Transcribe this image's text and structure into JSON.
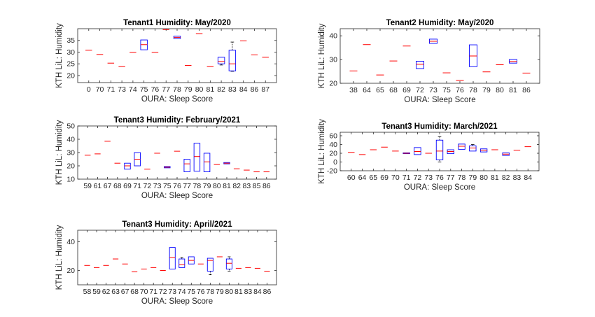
{
  "chart_data": [
    {
      "type": "boxplot",
      "title": "Tenant1 Humidity: May/2020",
      "xlabel": "OURA: Sleep Score",
      "ylabel": "KTH LiL: Humidity",
      "ylim": [
        17,
        40
      ],
      "yticks": [
        20,
        25,
        30,
        35
      ],
      "categories": [
        "0",
        "70",
        "71",
        "73",
        "74",
        "75",
        "76",
        "77",
        "78",
        "79",
        "80",
        "81",
        "82",
        "83",
        "84",
        "86",
        "87"
      ],
      "boxes": [
        {
          "q1": 30.8,
          "median": 30.8,
          "q3": 30.8,
          "whisker_low": 30.8,
          "whisker_high": 30.8
        },
        {
          "q1": 29,
          "median": 29,
          "q3": 29,
          "whisker_low": 29,
          "whisker_high": 29
        },
        {
          "q1": 25.3,
          "median": 25.3,
          "q3": 25.3,
          "whisker_low": 25.3,
          "whisker_high": 25.3
        },
        {
          "q1": 23.8,
          "median": 23.8,
          "q3": 23.8,
          "whisker_low": 23.8,
          "whisker_high": 23.8
        },
        {
          "q1": 29.9,
          "median": 29.9,
          "q3": 29.9,
          "whisker_low": 29.9,
          "whisker_high": 29.9
        },
        {
          "q1": 31,
          "median": 33.2,
          "q3": 35.2,
          "whisker_low": 31,
          "whisker_high": 35.2
        },
        {
          "q1": 29.9,
          "median": 29.9,
          "q3": 29.9,
          "whisker_low": 29.9,
          "whisker_high": 29.9
        },
        {
          "q1": 39.6,
          "median": 39.6,
          "q3": 39.6,
          "whisker_low": 39.6,
          "whisker_high": 39.6
        },
        {
          "q1": 35.8,
          "median": 36.3,
          "q3": 36.8,
          "whisker_low": 35.8,
          "whisker_high": 36.8
        },
        {
          "q1": 24.3,
          "median": 24.3,
          "q3": 24.3,
          "whisker_low": 24.3,
          "whisker_high": 24.3
        },
        {
          "q1": 37.9,
          "median": 37.9,
          "q3": 37.9,
          "whisker_low": 37.9,
          "whisker_high": 37.9
        },
        {
          "q1": 23.8,
          "median": 23.8,
          "q3": 23.8,
          "whisker_low": 23.8,
          "whisker_high": 23.8
        },
        {
          "q1": 25,
          "median": 26,
          "q3": 27.8,
          "whisker_low": 24.5,
          "whisker_high": 27.8
        },
        {
          "q1": 22,
          "median": 25,
          "q3": 30.8,
          "whisker_low": 21.8,
          "whisker_high": 34.3
        },
        {
          "q1": 34.8,
          "median": 34.8,
          "q3": 34.8,
          "whisker_low": 34.8,
          "whisker_high": 34.8
        },
        {
          "q1": 28.8,
          "median": 28.8,
          "q3": 28.8,
          "whisker_low": 28.8,
          "whisker_high": 28.8
        },
        {
          "q1": 27.8,
          "median": 27.8,
          "q3": 27.8,
          "whisker_low": 27.8,
          "whisker_high": 27.8
        }
      ]
    },
    {
      "type": "boxplot",
      "title": "Tenant2 Humidity: May/2020",
      "xlabel": "OURA: Sleep Score",
      "ylabel": "KTH LiL: Humidity",
      "ylim": [
        20,
        43
      ],
      "yticks": [
        20,
        30,
        40
      ],
      "categories": [
        "38",
        "64",
        "65",
        "68",
        "69",
        "72",
        "73",
        "75",
        "76",
        "78",
        "79",
        "80",
        "81",
        "86"
      ],
      "boxes": [
        {
          "q1": 25.2,
          "median": 25.2,
          "q3": 25.2,
          "whisker_low": 25.2,
          "whisker_high": 25.2
        },
        {
          "q1": 36.3,
          "median": 36.3,
          "q3": 36.3,
          "whisker_low": 36.3,
          "whisker_high": 36.3
        },
        {
          "q1": 23.5,
          "median": 23.5,
          "q3": 23.5,
          "whisker_low": 23.5,
          "whisker_high": 23.5
        },
        {
          "q1": 29.4,
          "median": 29.4,
          "q3": 29.4,
          "whisker_low": 29.4,
          "whisker_high": 29.4
        },
        {
          "q1": 35.7,
          "median": 35.7,
          "q3": 35.7,
          "whisker_low": 35.7,
          "whisker_high": 35.7
        },
        {
          "q1": 26.2,
          "median": 28,
          "q3": 29.3,
          "whisker_low": 26.2,
          "whisker_high": 29.3
        },
        {
          "q1": 36.8,
          "median": 37.7,
          "q3": 38.6,
          "whisker_low": 36.8,
          "whisker_high": 38.6
        },
        {
          "q1": 24.4,
          "median": 24.4,
          "q3": 24.4,
          "whisker_low": 24.4,
          "whisker_high": 24.4
        },
        {
          "q1": 21.2,
          "median": 21.2,
          "q3": 21.2,
          "whisker_low": 21.2,
          "whisker_high": 21.2
        },
        {
          "q1": 27,
          "median": 31.5,
          "q3": 36.2,
          "whisker_low": 27,
          "whisker_high": 36.2
        },
        {
          "q1": 24.8,
          "median": 24.8,
          "q3": 24.8,
          "whisker_low": 24.8,
          "whisker_high": 24.8
        },
        {
          "q1": 27.8,
          "median": 27.8,
          "q3": 27.8,
          "whisker_low": 27.8,
          "whisker_high": 27.8
        },
        {
          "q1": 28.5,
          "median": 29.2,
          "q3": 30,
          "whisker_low": 28.5,
          "whisker_high": 30
        },
        {
          "q1": 24.3,
          "median": 24.3,
          "q3": 24.3,
          "whisker_low": 24.3,
          "whisker_high": 24.3
        }
      ]
    },
    {
      "type": "boxplot",
      "title": "Tenant3 Humidity: February/2021",
      "xlabel": "OURA: Sleep Score",
      "ylabel": "KTH LiL: Humidity",
      "ylim": [
        10,
        50
      ],
      "yticks": [
        10,
        20,
        30,
        40,
        50
      ],
      "categories": [
        "59",
        "61",
        "67",
        "68",
        "69",
        "71",
        "72",
        "73",
        "75",
        "76",
        "77",
        "78",
        "79",
        "80",
        "81",
        "82",
        "83",
        "85",
        "86"
      ],
      "boxes": [
        {
          "q1": 28,
          "median": 28,
          "q3": 28,
          "whisker_low": 28,
          "whisker_high": 28
        },
        {
          "q1": 29,
          "median": 29,
          "q3": 29,
          "whisker_low": 29,
          "whisker_high": 29
        },
        {
          "q1": 38.5,
          "median": 38.5,
          "q3": 38.5,
          "whisker_low": 38.5,
          "whisker_high": 38.5
        },
        {
          "q1": 22,
          "median": 22,
          "q3": 22,
          "whisker_low": 22,
          "whisker_high": 22
        },
        {
          "q1": 17.5,
          "median": 20,
          "q3": 22,
          "whisker_low": 17.5,
          "whisker_high": 22
        },
        {
          "q1": 20,
          "median": 25,
          "q3": 30,
          "whisker_low": 20,
          "whisker_high": 30
        },
        {
          "q1": 17.5,
          "median": 17.5,
          "q3": 17.5,
          "whisker_low": 17.5,
          "whisker_high": 17.5
        },
        {
          "q1": 29.5,
          "median": 29.5,
          "q3": 29.5,
          "whisker_low": 29.5,
          "whisker_high": 29.5
        },
        {
          "q1": 18.5,
          "median": 19,
          "q3": 19.5,
          "whisker_low": 18.5,
          "whisker_high": 19.5
        },
        {
          "q1": 31,
          "median": 31,
          "q3": 31,
          "whisker_low": 31,
          "whisker_high": 31
        },
        {
          "q1": 15.5,
          "median": 21.5,
          "q3": 25,
          "whisker_low": 15.5,
          "whisker_high": 25
        },
        {
          "q1": 16,
          "median": 27,
          "q3": 37,
          "whisker_low": 16,
          "whisker_high": 37
        },
        {
          "q1": 15.5,
          "median": 23,
          "q3": 29.5,
          "whisker_low": 15.5,
          "whisker_high": 29.5
        },
        {
          "q1": 21,
          "median": 21,
          "q3": 21,
          "whisker_low": 21,
          "whisker_high": 21
        },
        {
          "q1": 21.5,
          "median": 22,
          "q3": 22.5,
          "whisker_low": 21.5,
          "whisker_high": 22.5
        },
        {
          "q1": 17.8,
          "median": 17.8,
          "q3": 17.8,
          "whisker_low": 17.8,
          "whisker_high": 17.8
        },
        {
          "q1": 16.8,
          "median": 16.8,
          "q3": 16.8,
          "whisker_low": 16.8,
          "whisker_high": 16.8
        },
        {
          "q1": 15.5,
          "median": 15.5,
          "q3": 15.5,
          "whisker_low": 15.5,
          "whisker_high": 15.5
        },
        {
          "q1": 15.5,
          "median": 15.5,
          "q3": 15.5,
          "whisker_low": 15.5,
          "whisker_high": 15.5
        }
      ]
    },
    {
      "type": "boxplot",
      "title": "Tenant3 Humidity: March/2021",
      "xlabel": "OURA: Sleep Score",
      "ylabel": "KTH LiL: Humidity",
      "ylim": [
        -20,
        68
      ],
      "yticks": [
        -20,
        0,
        20,
        40,
        60
      ],
      "categories": [
        "60",
        "64",
        "65",
        "69",
        "70",
        "71",
        "72",
        "73",
        "76",
        "77",
        "78",
        "79",
        "80",
        "81",
        "82",
        "83",
        "84"
      ],
      "boxes": [
        {
          "q1": 22,
          "median": 22,
          "q3": 22,
          "whisker_low": 22,
          "whisker_high": 22
        },
        {
          "q1": 17,
          "median": 17,
          "q3": 17,
          "whisker_low": 17,
          "whisker_high": 17
        },
        {
          "q1": 28,
          "median": 28,
          "q3": 28,
          "whisker_low": 28,
          "whisker_high": 28
        },
        {
          "q1": 34,
          "median": 34,
          "q3": 34,
          "whisker_low": 34,
          "whisker_high": 34
        },
        {
          "q1": 25,
          "median": 25,
          "q3": 25,
          "whisker_low": 25,
          "whisker_high": 25
        },
        {
          "q1": 19,
          "median": 20,
          "q3": 21,
          "whisker_low": 19,
          "whisker_high": 21
        },
        {
          "q1": 17,
          "median": 24,
          "q3": 33,
          "whisker_low": 17,
          "whisker_high": 33
        },
        {
          "q1": 20,
          "median": 20,
          "q3": 20,
          "whisker_low": 20,
          "whisker_high": 20
        },
        {
          "q1": 5,
          "median": 25,
          "q3": 50,
          "whisker_low": 0,
          "whisker_high": 58
        },
        {
          "q1": 19,
          "median": 24,
          "q3": 28,
          "whisker_low": 19,
          "whisker_high": 28
        },
        {
          "q1": 29,
          "median": 36,
          "q3": 41,
          "whisker_low": 29,
          "whisker_high": 41
        },
        {
          "q1": 25,
          "median": 32,
          "q3": 37,
          "whisker_low": 25,
          "whisker_high": 40
        },
        {
          "q1": 23,
          "median": 27,
          "q3": 30,
          "whisker_low": 23,
          "whisker_high": 30
        },
        {
          "q1": 28,
          "median": 28,
          "q3": 28,
          "whisker_low": 28,
          "whisker_high": 28
        },
        {
          "q1": 15,
          "median": 18,
          "q3": 21,
          "whisker_low": 15,
          "whisker_high": 21
        },
        {
          "q1": 27,
          "median": 27,
          "q3": 27,
          "whisker_low": 27,
          "whisker_high": 27
        },
        {
          "q1": 35,
          "median": 35,
          "q3": 35,
          "whisker_low": 35,
          "whisker_high": 35
        }
      ]
    },
    {
      "type": "boxplot",
      "title": "Tenant3 Humidity: April/2021",
      "xlabel": "OURA: Sleep Score",
      "ylabel": "KTH LiL: Humidity",
      "ylim": [
        10,
        48
      ],
      "yticks": [
        20,
        40
      ],
      "categories": [
        "58",
        "59",
        "62",
        "63",
        "67",
        "68",
        "70",
        "71",
        "72",
        "73",
        "74",
        "75",
        "76",
        "78",
        "79",
        "80",
        "81",
        "83",
        "84",
        "86"
      ],
      "boxes": [
        {
          "q1": 23.5,
          "median": 23.5,
          "q3": 23.5,
          "whisker_low": 23.5,
          "whisker_high": 23.5
        },
        {
          "q1": 22,
          "median": 22,
          "q3": 22,
          "whisker_low": 22,
          "whisker_high": 22
        },
        {
          "q1": 23.5,
          "median": 23.5,
          "q3": 23.5,
          "whisker_low": 23.5,
          "whisker_high": 23.5
        },
        {
          "q1": 28,
          "median": 28,
          "q3": 28,
          "whisker_low": 28,
          "whisker_high": 28
        },
        {
          "q1": 24.5,
          "median": 24.5,
          "q3": 24.5,
          "whisker_low": 24.5,
          "whisker_high": 24.5
        },
        {
          "q1": 19,
          "median": 19,
          "q3": 19,
          "whisker_low": 19,
          "whisker_high": 19
        },
        {
          "q1": 21,
          "median": 21,
          "q3": 21,
          "whisker_low": 21,
          "whisker_high": 21
        },
        {
          "q1": 22,
          "median": 22,
          "q3": 22,
          "whisker_low": 22,
          "whisker_high": 22
        },
        {
          "q1": 20,
          "median": 20,
          "q3": 20,
          "whisker_low": 20,
          "whisker_high": 20
        },
        {
          "q1": 21,
          "median": 29,
          "q3": 36,
          "whisker_low": 21,
          "whisker_high": 36
        },
        {
          "q1": 22,
          "median": 24,
          "q3": 28,
          "whisker_low": 22,
          "whisker_high": 29
        },
        {
          "q1": 24.5,
          "median": 27,
          "q3": 29.5,
          "whisker_low": 24.5,
          "whisker_high": 29.5
        },
        {
          "q1": 24.5,
          "median": 24.5,
          "q3": 24.5,
          "whisker_low": 24.5,
          "whisker_high": 24.5
        },
        {
          "q1": 19.5,
          "median": 27,
          "q3": 28.5,
          "whisker_low": 17,
          "whisker_high": 28.5
        },
        {
          "q1": 29.5,
          "median": 29.5,
          "q3": 29.5,
          "whisker_low": 29.5,
          "whisker_high": 29.5
        },
        {
          "q1": 21,
          "median": 25,
          "q3": 28,
          "whisker_low": 19.5,
          "whisker_high": 29.5
        },
        {
          "q1": 21.5,
          "median": 21.5,
          "q3": 21.5,
          "whisker_low": 21.5,
          "whisker_high": 21.5
        },
        {
          "q1": 22,
          "median": 22,
          "q3": 22,
          "whisker_low": 22,
          "whisker_high": 22
        },
        {
          "q1": 21.5,
          "median": 21.5,
          "q3": 21.5,
          "whisker_low": 21.5,
          "whisker_high": 21.5
        },
        {
          "q1": 19.5,
          "median": 19.5,
          "q3": 19.5,
          "whisker_low": 19.5,
          "whisker_high": 19.5
        }
      ]
    }
  ],
  "style": {
    "box_color": "#0000ff",
    "median_color": "#ff0000",
    "whisker_color": "#000000",
    "axis_color": "#262626",
    "text_color": "#262626"
  }
}
